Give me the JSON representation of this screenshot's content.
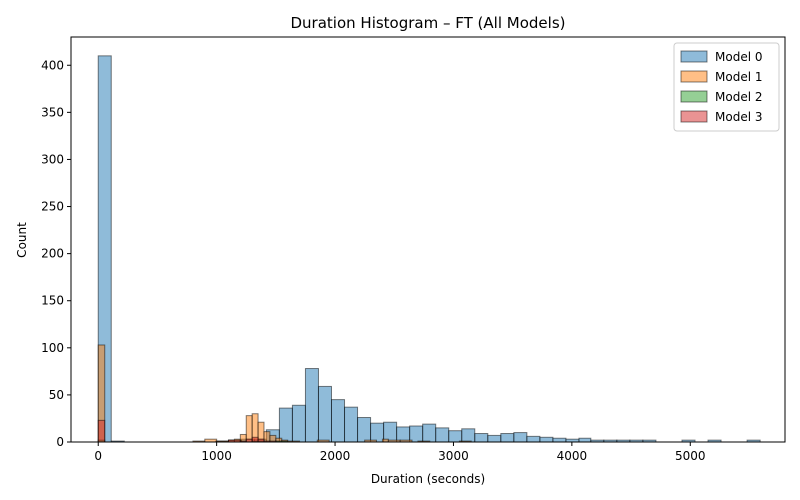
{
  "chart_data": {
    "type": "bar",
    "title": "Duration Histogram – FT (All Models)",
    "xlabel": "Duration (seconds)",
    "ylabel": "Count",
    "xlim": [
      -230,
      5800
    ],
    "ylim": [
      0,
      430
    ],
    "xticks": [
      0,
      1000,
      2000,
      3000,
      4000,
      5000
    ],
    "yticks": [
      0,
      50,
      100,
      150,
      200,
      250,
      300,
      350,
      400
    ],
    "legend_position": "top-right",
    "series": [
      {
        "name": "Model 0",
        "color": "#1f77b4",
        "bins": [
          [
            0,
            110,
            410
          ],
          [
            110,
            220,
            1
          ],
          [
            220,
            330,
            0
          ],
          [
            330,
            440,
            0
          ],
          [
            440,
            550,
            0
          ],
          [
            550,
            660,
            0
          ],
          [
            660,
            770,
            0
          ],
          [
            770,
            880,
            0
          ],
          [
            880,
            990,
            0
          ],
          [
            990,
            1100,
            1
          ],
          [
            1100,
            1210,
            2
          ],
          [
            1210,
            1320,
            3
          ],
          [
            1320,
            1420,
            3
          ],
          [
            1420,
            1530,
            13
          ],
          [
            1530,
            1640,
            36
          ],
          [
            1640,
            1750,
            39
          ],
          [
            1750,
            1860,
            78
          ],
          [
            1860,
            1970,
            59
          ],
          [
            1970,
            2080,
            45
          ],
          [
            2080,
            2190,
            37
          ],
          [
            2190,
            2300,
            26
          ],
          [
            2300,
            2410,
            20
          ],
          [
            2410,
            2520,
            21
          ],
          [
            2520,
            2630,
            16
          ],
          [
            2630,
            2740,
            17
          ],
          [
            2740,
            2850,
            19
          ],
          [
            2850,
            2960,
            15
          ],
          [
            2960,
            3070,
            12
          ],
          [
            3070,
            3180,
            14
          ],
          [
            3180,
            3290,
            9
          ],
          [
            3290,
            3400,
            7
          ],
          [
            3400,
            3510,
            9
          ],
          [
            3510,
            3620,
            10
          ],
          [
            3620,
            3730,
            6
          ],
          [
            3730,
            3840,
            5
          ],
          [
            3840,
            3950,
            4
          ],
          [
            3950,
            4060,
            3
          ],
          [
            4060,
            4160,
            4
          ],
          [
            4160,
            4270,
            2
          ],
          [
            4270,
            4380,
            2
          ],
          [
            4380,
            4490,
            2
          ],
          [
            4490,
            4600,
            2
          ],
          [
            4600,
            4710,
            2
          ],
          [
            4710,
            4820,
            0
          ],
          [
            4820,
            4930,
            0
          ],
          [
            4930,
            5040,
            2
          ],
          [
            5040,
            5150,
            0
          ],
          [
            5150,
            5260,
            2
          ],
          [
            5260,
            5370,
            0
          ],
          [
            5370,
            5480,
            0
          ],
          [
            5480,
            5590,
            2
          ]
        ]
      },
      {
        "name": "Model 1",
        "color": "#ff7f0e",
        "bins": [
          [
            0,
            55,
            103
          ],
          [
            800,
            900,
            1
          ],
          [
            900,
            1000,
            3
          ],
          [
            1000,
            1100,
            1
          ],
          [
            1100,
            1150,
            2
          ],
          [
            1150,
            1200,
            3
          ],
          [
            1200,
            1250,
            8
          ],
          [
            1250,
            1300,
            28
          ],
          [
            1300,
            1350,
            30
          ],
          [
            1350,
            1400,
            21
          ],
          [
            1400,
            1450,
            11
          ],
          [
            1450,
            1500,
            7
          ],
          [
            1500,
            1550,
            4
          ],
          [
            1550,
            1600,
            2
          ],
          [
            1600,
            1700,
            1
          ],
          [
            1850,
            1950,
            2
          ],
          [
            2250,
            2350,
            2
          ],
          [
            2400,
            2450,
            3
          ],
          [
            2450,
            2550,
            2
          ],
          [
            2550,
            2650,
            2
          ],
          [
            2700,
            2800,
            1
          ],
          [
            3050,
            3150,
            1
          ]
        ]
      },
      {
        "name": "Model 2",
        "color": "#2ca02c",
        "bins": [
          [
            0,
            55,
            2
          ],
          [
            1300,
            1400,
            1
          ],
          [
            1500,
            1600,
            1
          ]
        ]
      },
      {
        "name": "Model 3",
        "color": "#d62728",
        "bins": [
          [
            0,
            55,
            23
          ],
          [
            1100,
            1200,
            2
          ],
          [
            1200,
            1250,
            1
          ],
          [
            1250,
            1300,
            3
          ],
          [
            1300,
            1350,
            5
          ],
          [
            1350,
            1400,
            3
          ],
          [
            1400,
            1450,
            1
          ],
          [
            1450,
            1500,
            1
          ]
        ]
      }
    ]
  }
}
